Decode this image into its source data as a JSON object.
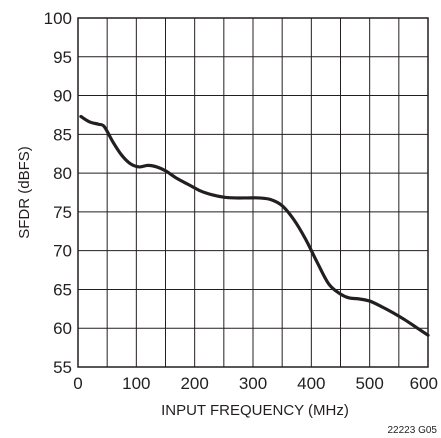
{
  "chart_data": {
    "type": "line",
    "xlabel": "INPUT FREQUENCY (MHz)",
    "ylabel": "SFDR (dBFS)",
    "xlim": [
      0,
      600
    ],
    "ylim": [
      55,
      100
    ],
    "x_ticks": [
      0,
      100,
      200,
      300,
      400,
      500,
      600
    ],
    "x_tick_labels": [
      "0",
      "100",
      "200",
      "300",
      "400",
      "500",
      "600"
    ],
    "y_ticks": [
      55,
      60,
      65,
      70,
      75,
      80,
      85,
      90,
      95,
      100
    ],
    "y_tick_labels": [
      "55",
      "60",
      "65",
      "70",
      "75",
      "80",
      "85",
      "90",
      "95",
      "100"
    ],
    "x_grid_step": 50,
    "y_grid_step": 5,
    "grid": true,
    "series": [
      {
        "x": [
          5,
          20,
          35,
          45,
          60,
          75,
          90,
          105,
          120,
          135,
          150,
          170,
          190,
          210,
          230,
          250,
          270,
          290,
          310,
          330,
          350,
          370,
          390,
          410,
          430,
          450,
          465,
          480,
          500,
          520,
          540,
          560,
          580,
          600
        ],
        "y": [
          87.3,
          86.6,
          86.3,
          86.0,
          84.0,
          82.3,
          81.2,
          80.8,
          81.0,
          80.8,
          80.3,
          79.3,
          78.5,
          77.7,
          77.2,
          76.9,
          76.8,
          76.8,
          76.8,
          76.6,
          75.8,
          74.0,
          71.5,
          68.5,
          65.7,
          64.4,
          63.9,
          63.8,
          63.5,
          62.8,
          62.0,
          61.1,
          60.1,
          59.1
        ],
        "color": "#231f20"
      }
    ],
    "annotations": [
      "22223 G05"
    ]
  }
}
